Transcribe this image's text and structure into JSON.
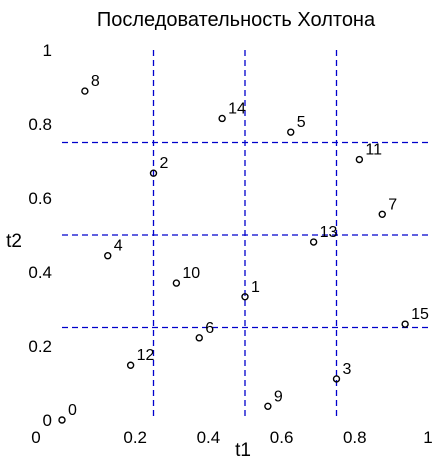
{
  "chart_data": {
    "type": "scatter",
    "title": "Последовательность Холтона",
    "xlabel": "t1",
    "ylabel": "t2",
    "xlim": [
      0,
      1
    ],
    "ylim": [
      0,
      1
    ],
    "x_ticks": [
      "0",
      "0.2",
      "0.4",
      "0.6",
      "0.8",
      "1"
    ],
    "y_ticks": [
      "0",
      "0.2",
      "0.4",
      "0.6",
      "0.8",
      "1"
    ],
    "x_tick_values": [
      0,
      0.2,
      0.4,
      0.6,
      0.8,
      1
    ],
    "y_tick_values": [
      0,
      0.2,
      0.4,
      0.6,
      0.8,
      1
    ],
    "grid_x": [
      0.25,
      0.5,
      0.75
    ],
    "grid_y": [
      0.25,
      0.5,
      0.75
    ],
    "grid_color": "#0000cc",
    "points": [
      {
        "label": "0",
        "x": 0.0,
        "y": 0.0
      },
      {
        "label": "1",
        "x": 0.5,
        "y": 0.333
      },
      {
        "label": "2",
        "x": 0.25,
        "y": 0.667
      },
      {
        "label": "3",
        "x": 0.75,
        "y": 0.111
      },
      {
        "label": "4",
        "x": 0.125,
        "y": 0.444
      },
      {
        "label": "5",
        "x": 0.625,
        "y": 0.778
      },
      {
        "label": "6",
        "x": 0.375,
        "y": 0.222
      },
      {
        "label": "7",
        "x": 0.875,
        "y": 0.556
      },
      {
        "label": "8",
        "x": 0.0625,
        "y": 0.889
      },
      {
        "label": "9",
        "x": 0.5625,
        "y": 0.037
      },
      {
        "label": "10",
        "x": 0.3125,
        "y": 0.37
      },
      {
        "label": "11",
        "x": 0.8125,
        "y": 0.704
      },
      {
        "label": "12",
        "x": 0.1875,
        "y": 0.148
      },
      {
        "label": "13",
        "x": 0.6875,
        "y": 0.481
      },
      {
        "label": "14",
        "x": 0.4375,
        "y": 0.815
      },
      {
        "label": "15",
        "x": 0.9375,
        "y": 0.259
      }
    ]
  }
}
